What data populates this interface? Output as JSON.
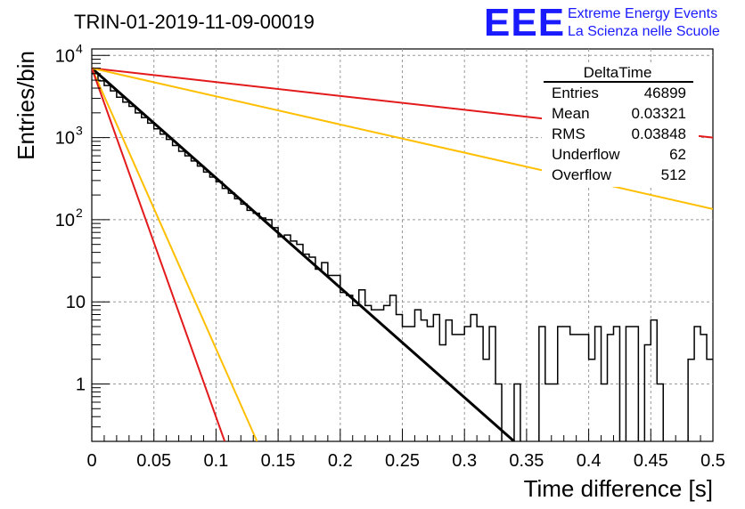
{
  "chart_data": {
    "type": "histogram",
    "title": "TRIN-01-2019-11-09-00019",
    "xlabel": "Time difference [s]",
    "ylabel": "Entries/bin",
    "xlim": [
      0,
      0.5
    ],
    "ylim": [
      0.2,
      12000
    ],
    "yscale": "log",
    "grid": true,
    "x_ticks": [
      {
        "value": 0,
        "label": "0"
      },
      {
        "value": 0.05,
        "label": "0.05"
      },
      {
        "value": 0.1,
        "label": "0.1"
      },
      {
        "value": 0.15,
        "label": "0.15"
      },
      {
        "value": 0.2,
        "label": "0.2"
      },
      {
        "value": 0.25,
        "label": "0.25"
      },
      {
        "value": 0.3,
        "label": "0.3"
      },
      {
        "value": 0.35,
        "label": "0.35"
      },
      {
        "value": 0.4,
        "label": "0.4"
      },
      {
        "value": 0.45,
        "label": "0.45"
      },
      {
        "value": 0.5,
        "label": "0.5"
      }
    ],
    "y_ticks": [
      {
        "value": 1,
        "label": "1"
      },
      {
        "value": 10,
        "label": "10"
      },
      {
        "value": 100,
        "label": "10",
        "exp": "2"
      },
      {
        "value": 1000,
        "label": "10",
        "exp": "3"
      },
      {
        "value": 10000,
        "label": "10",
        "exp": "4"
      }
    ],
    "histogram": {
      "bin_width": 0.005,
      "color": "#000000",
      "counts": [
        6000,
        4900,
        4300,
        3700,
        3100,
        2700,
        2400,
        2000,
        1750,
        1500,
        1280,
        1100,
        950,
        800,
        680,
        600,
        520,
        450,
        380,
        330,
        290,
        240,
        210,
        180,
        155,
        130,
        120,
        105,
        100,
        80,
        62,
        65,
        55,
        50,
        38,
        35,
        25,
        30,
        21,
        21,
        13,
        12,
        9,
        14,
        9,
        8,
        8,
        9,
        12,
        7,
        5,
        5,
        8,
        6,
        5,
        7,
        3,
        6,
        4,
        4,
        5,
        7,
        5,
        2,
        5,
        1,
        0.1,
        0.1,
        1,
        0.1,
        0.1,
        0.1,
        5,
        1,
        1,
        5,
        5,
        4,
        4,
        4,
        2,
        5,
        1,
        4,
        5,
        0.1,
        5,
        5,
        0.1,
        3,
        6,
        1,
        0.1,
        0.1,
        0.1,
        0.1,
        2,
        5,
        4,
        2
      ]
    },
    "stats": {
      "name": "DeltaTime",
      "rows": [
        {
          "label": "Entries",
          "value": "46899"
        },
        {
          "label": "Mean",
          "value": "0.03321"
        },
        {
          "label": "RMS",
          "value": "0.03848"
        },
        {
          "label": "Underflow",
          "value": "62"
        },
        {
          "label": "Overflow",
          "value": "512"
        }
      ]
    },
    "fit_lines": [
      {
        "color": "#000000",
        "width": 3,
        "x0": 0,
        "y0": 7000,
        "x1": 0.34,
        "y1": 0.2
      },
      {
        "color": "#e31a1c",
        "width": 2,
        "x0": 0,
        "y0": 7000,
        "x1": 0.5,
        "y1": 1000
      },
      {
        "color": "#ffbf00",
        "width": 2,
        "x0": 0,
        "y0": 7000,
        "x1": 0.5,
        "y1": 135
      },
      {
        "color": "#ffbf00",
        "width": 2,
        "x0": 0,
        "y0": 7000,
        "x1": 0.133,
        "y1": 0.2
      },
      {
        "color": "#e31a1c",
        "width": 2,
        "x0": 0,
        "y0": 7000,
        "x1": 0.107,
        "y1": 0.2
      }
    ]
  },
  "logo": {
    "mark": "EEE",
    "line1": "Extreme Energy Events",
    "line2": "La Scienza nelle Scuole"
  }
}
